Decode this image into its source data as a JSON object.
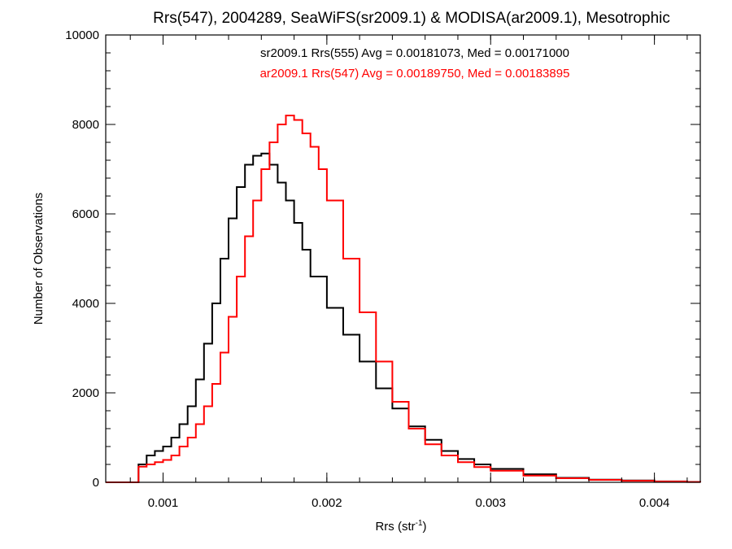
{
  "chart_data": {
    "type": "line",
    "title": "Rrs(547), 2004289, SeaWiFS(sr2009.1) & MODISA(ar2009.1), Mesotrophic",
    "xlabel_main": "Rrs (str",
    "xlabel_sup": "-1",
    "xlabel_close": ")",
    "ylabel": "Number of Observations",
    "xlim": [
      0.00065,
      0.00428
    ],
    "ylim": [
      0,
      10000
    ],
    "xticks": [
      0.001,
      0.002,
      0.003,
      0.004
    ],
    "xtick_labels": [
      "0.001",
      "0.002",
      "0.003",
      "0.004"
    ],
    "yticks": [
      0,
      2000,
      4000,
      6000,
      8000,
      10000
    ],
    "ytick_labels": [
      "0",
      "2000",
      "4000",
      "6000",
      "8000",
      "10000"
    ],
    "annotations": [
      {
        "text": "sr2009.1 Rrs(555) Avg = 0.00181073, Med = 0.00171000",
        "color": "#000000"
      },
      {
        "text": "ar2009.1 Rrs(547) Avg = 0.00189750, Med = 0.00183895",
        "color": "#ff0000"
      }
    ],
    "series": [
      {
        "color": "#000000",
        "x": [
          0.00065,
          0.0008,
          0.00085,
          0.0009,
          0.00095,
          0.001,
          0.00105,
          0.0011,
          0.00115,
          0.0012,
          0.00125,
          0.0013,
          0.00135,
          0.0014,
          0.00145,
          0.0015,
          0.00155,
          0.0016,
          0.00165,
          0.0017,
          0.00175,
          0.0018,
          0.00185,
          0.0019,
          0.002,
          0.0021,
          0.0022,
          0.0023,
          0.0024,
          0.0025,
          0.0026,
          0.0027,
          0.0028,
          0.0029,
          0.003,
          0.0032,
          0.0034,
          0.0036,
          0.0038,
          0.004,
          0.0042,
          0.00428
        ],
        "y": [
          0,
          0,
          400,
          600,
          700,
          800,
          1000,
          1300,
          1700,
          2300,
          3100,
          4000,
          5000,
          5900,
          6600,
          7100,
          7300,
          7350,
          7100,
          6700,
          6300,
          5800,
          5200,
          4600,
          3900,
          3300,
          2700,
          2100,
          1650,
          1250,
          950,
          700,
          520,
          400,
          300,
          180,
          100,
          60,
          40,
          20,
          10,
          0
        ]
      },
      {
        "color": "#ff0000",
        "x": [
          0.00065,
          0.0008,
          0.00085,
          0.0009,
          0.00095,
          0.001,
          0.00105,
          0.0011,
          0.00115,
          0.0012,
          0.00125,
          0.0013,
          0.00135,
          0.0014,
          0.00145,
          0.0015,
          0.00155,
          0.0016,
          0.00165,
          0.0017,
          0.00175,
          0.0018,
          0.00185,
          0.0019,
          0.00195,
          0.002,
          0.0021,
          0.0022,
          0.0023,
          0.0024,
          0.0025,
          0.0026,
          0.0027,
          0.0028,
          0.0029,
          0.003,
          0.0032,
          0.0034,
          0.0036,
          0.0038,
          0.004,
          0.0042,
          0.00428
        ],
        "y": [
          0,
          0,
          350,
          400,
          450,
          500,
          600,
          800,
          1000,
          1300,
          1700,
          2200,
          2900,
          3700,
          4600,
          5500,
          6300,
          7000,
          7600,
          8000,
          8200,
          8100,
          7800,
          7500,
          7000,
          6300,
          5000,
          3800,
          2700,
          1800,
          1200,
          850,
          600,
          450,
          340,
          260,
          150,
          90,
          55,
          35,
          18,
          8,
          0
        ]
      }
    ]
  }
}
